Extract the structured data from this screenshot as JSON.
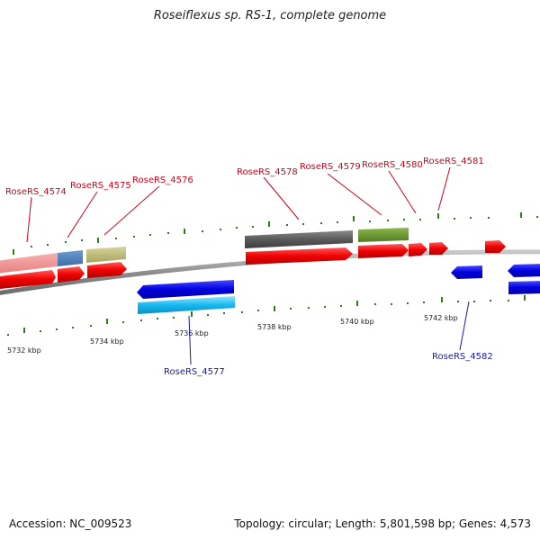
{
  "header": {
    "title": "Roseiflexus sp. RS-1, complete genome"
  },
  "footer": {
    "accession": "Accession: NC_009523",
    "summary": "Topology: circular; Length: 5,801,598 bp; Genes: 4,573"
  },
  "ruler_labels": [
    "5732 kbp",
    "5734 kbp",
    "5736 kbp",
    "5738 kbp",
    "5740 kbp",
    "5742 kbp"
  ],
  "gene_labels": [
    {
      "text": "RoseRS_4574",
      "strand": "forward"
    },
    {
      "text": "RoseRS_4575",
      "strand": "forward"
    },
    {
      "text": "RoseRS_4576",
      "strand": "forward"
    },
    {
      "text": "RoseRS_4578",
      "strand": "forward"
    },
    {
      "text": "RoseRS_4579",
      "strand": "forward"
    },
    {
      "text": "RoseRS_4580",
      "strand": "forward"
    },
    {
      "text": "RoseRS_4581",
      "strand": "forward"
    },
    {
      "text": "RoseRS_4577",
      "strand": "reverse"
    },
    {
      "text": "RoseRS_4582",
      "strand": "reverse"
    }
  ],
  "colors": {
    "forward_label": "#d0021b",
    "reverse_label": "#1a1aa8",
    "backbone": "#8c8c8c",
    "tick": "#2e7d1a"
  }
}
